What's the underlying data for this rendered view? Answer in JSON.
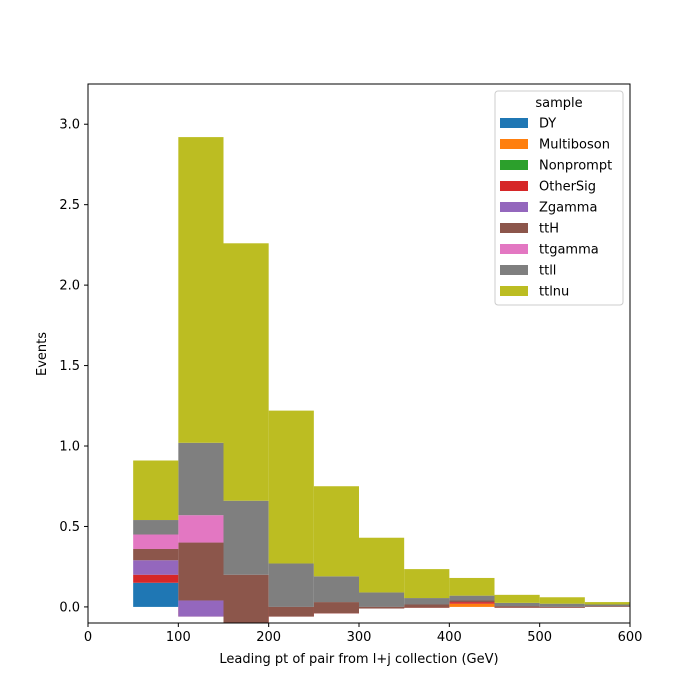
{
  "chart_data": {
    "type": "bar",
    "stacked": true,
    "xlabel": "Leading pt of pair from l+j collection (GeV)",
    "ylabel": "Events",
    "xlim": [
      0,
      600
    ],
    "ylim": [
      -0.1,
      3.25
    ],
    "xticks": [
      0,
      100,
      200,
      300,
      400,
      500,
      600
    ],
    "yticks": [
      0.0,
      0.5,
      1.0,
      1.5,
      2.0,
      2.5,
      3.0
    ],
    "grid": false,
    "legend": {
      "title": "sample",
      "placement": "top-right"
    },
    "bin_edges": [
      50,
      100,
      150,
      200,
      250,
      300,
      350,
      400,
      450,
      500,
      550,
      600
    ],
    "series": [
      {
        "name": "DY",
        "color": "#1f77b4",
        "values": [
          0.15,
          0,
          0,
          0,
          0,
          0,
          0,
          0,
          0,
          0,
          0
        ]
      },
      {
        "name": "Multiboson",
        "color": "#ff7f0e",
        "values": [
          0,
          0,
          0,
          0,
          0,
          0,
          0,
          0.02,
          0,
          0,
          0
        ]
      },
      {
        "name": "Nonprompt",
        "color": "#2ca02c",
        "values": [
          0,
          0,
          0,
          0,
          0,
          0,
          0,
          0,
          0,
          0,
          0
        ]
      },
      {
        "name": "OtherSig",
        "color": "#d62728",
        "values": [
          0.05,
          -0.06,
          -0.1,
          -0.06,
          -0.04,
          -0.01,
          -0.005,
          0.01,
          -0.005,
          -0.005,
          0
        ]
      },
      {
        "name": "Zgamma",
        "color": "#9467bd",
        "values": [
          0.09,
          0.1,
          0,
          0,
          0,
          0,
          0,
          0,
          0,
          0,
          0
        ]
      },
      {
        "name": "ttH",
        "color": "#8c564b",
        "values": [
          0.07,
          0.36,
          0.3,
          0.06,
          0.07,
          0.01,
          0.02,
          0.01,
          0.01,
          0.005,
          0.005
        ]
      },
      {
        "name": "ttgamma",
        "color": "#e377c2",
        "values": [
          0.09,
          0.17,
          0,
          0,
          0,
          0,
          0,
          0,
          0,
          0,
          0
        ]
      },
      {
        "name": "ttll",
        "color": "#7f7f7f",
        "values": [
          0.09,
          0.45,
          0.46,
          0.27,
          0.16,
          0.09,
          0.04,
          0.03,
          0.02,
          0.02,
          0.01
        ]
      },
      {
        "name": "ttlnu",
        "color": "#bcbd22",
        "values": [
          0.37,
          1.9,
          1.6,
          0.95,
          0.56,
          0.34,
          0.18,
          0.11,
          0.05,
          0.04,
          0.015
        ]
      }
    ]
  }
}
